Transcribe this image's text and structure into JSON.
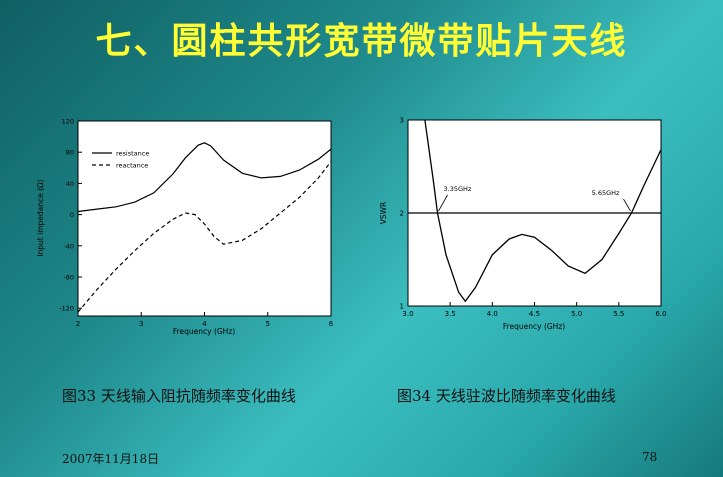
{
  "slide": {
    "title": "七、圆柱共形宽带微带贴片天线",
    "caption1": "图33 天线输入阻抗随频率变化曲线",
    "caption2": "图34 天线驻波比随频率变化曲线",
    "date": "2007年11月18日",
    "page_number": "78"
  },
  "chart_data": [
    {
      "type": "line",
      "xlabel": "Frequency (GHz)",
      "ylabel": "Input impedance (Ω)",
      "xlim": [
        2,
        6
      ],
      "ylim": [
        -130,
        120
      ],
      "xticks": [
        "2",
        "3",
        "4",
        "5",
        "6"
      ],
      "yticks": [
        "120",
        "80",
        "40",
        "0",
        "-40",
        "-80",
        "-120"
      ],
      "legend_position": "top-left",
      "series": [
        {
          "name": "resistance",
          "style": "solid",
          "x": [
            2,
            2.3,
            2.6,
            2.9,
            3.2,
            3.5,
            3.7,
            3.9,
            4.0,
            4.1,
            4.3,
            4.6,
            4.9,
            5.2,
            5.5,
            5.8,
            6.0
          ],
          "y": [
            4,
            7,
            10,
            16,
            28,
            52,
            73,
            89,
            92,
            88,
            70,
            53,
            47,
            49,
            57,
            71,
            84
          ]
        },
        {
          "name": "reactance",
          "style": "dashed",
          "x": [
            2,
            2.3,
            2.6,
            2.9,
            3.2,
            3.5,
            3.7,
            3.85,
            4.0,
            4.15,
            4.3,
            4.6,
            4.9,
            5.2,
            5.5,
            5.8,
            6.0
          ],
          "y": [
            -125,
            -96,
            -70,
            -46,
            -24,
            -6,
            2,
            0,
            -12,
            -28,
            -38,
            -33,
            -18,
            2,
            22,
            47,
            68
          ]
        }
      ]
    },
    {
      "type": "line",
      "xlabel": "Frequency (GHz)",
      "ylabel": "VSWR",
      "xlim": [
        3.0,
        6.0
      ],
      "ylim": [
        1,
        3
      ],
      "xticks": [
        "3.0",
        "3.5",
        "4.0",
        "4.5",
        "5.0",
        "5.5",
        "6.0"
      ],
      "yticks": [
        "3",
        "2",
        "1"
      ],
      "reference_line": 2,
      "annotations": [
        "3.35GHz",
        "5.65GHz"
      ],
      "series": [
        {
          "style": "solid",
          "x": [
            3.2,
            3.3,
            3.35,
            3.45,
            3.6,
            3.68,
            3.8,
            4.0,
            4.2,
            4.35,
            4.5,
            4.7,
            4.9,
            5.1,
            5.3,
            5.5,
            5.65,
            5.8,
            6.0
          ],
          "y": [
            3.0,
            2.35,
            2.0,
            1.55,
            1.15,
            1.05,
            1.2,
            1.55,
            1.72,
            1.77,
            1.74,
            1.6,
            1.43,
            1.35,
            1.5,
            1.78,
            2.0,
            2.3,
            2.68
          ]
        }
      ]
    }
  ]
}
